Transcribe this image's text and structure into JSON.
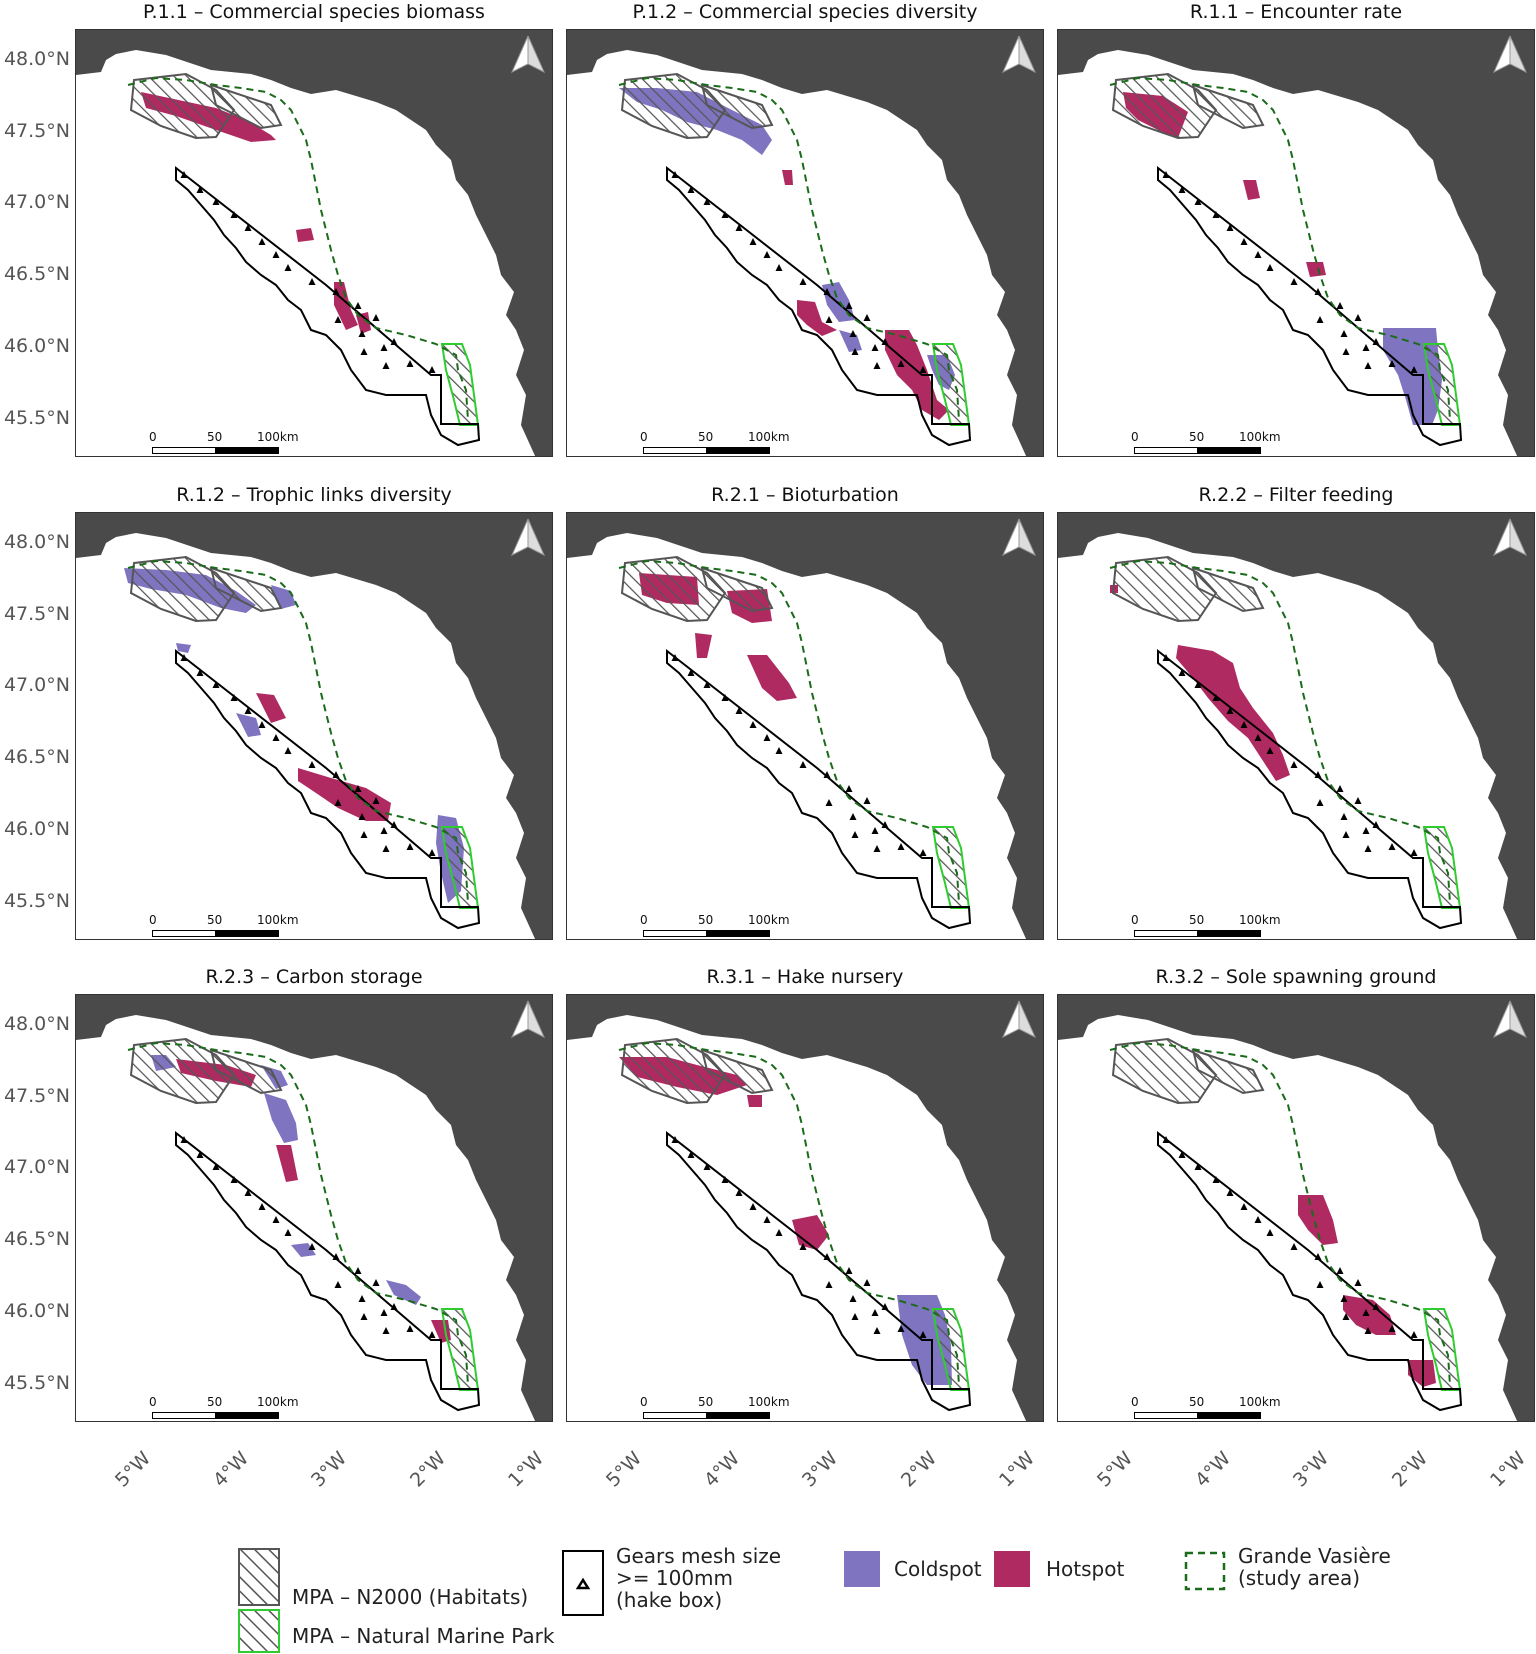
{
  "axes": {
    "lat_ticks": [
      "48.0°N",
      "47.5°N",
      "47.0°N",
      "46.5°N",
      "46.0°N",
      "45.5°N"
    ],
    "lon_ticks": [
      "5°W",
      "4°W",
      "3°W",
      "2°W",
      "1°W"
    ]
  },
  "scale": {
    "l0": "0",
    "l50": "50",
    "l100": "100km"
  },
  "colors": {
    "coldspot": "#7f74c0",
    "hotspot": "#b02a62",
    "land": "#4a4a4a",
    "n2000": "#555555",
    "park": "#2ecc2e",
    "grande_vasiere": "#1a6b1a"
  },
  "panels": [
    {
      "id": "P.1.1",
      "title": "P.1.1 – Commercial species biomass"
    },
    {
      "id": "P.1.2",
      "title": "P.1.2 – Commercial species diversity"
    },
    {
      "id": "R.1.1",
      "title": "R.1.1 – Encounter rate"
    },
    {
      "id": "R.1.2",
      "title": "R.1.2 – Trophic links diversity"
    },
    {
      "id": "R.2.1",
      "title": "R.2.1 – Bioturbation"
    },
    {
      "id": "R.2.2",
      "title": "R.2.2 – Filter feeding"
    },
    {
      "id": "R.2.3",
      "title": "R.2.3 – Carbon storage"
    },
    {
      "id": "R.3.1",
      "title": "R.3.1 – Hake nursery"
    },
    {
      "id": "R.3.2",
      "title": "R.3.2 – Sole spawning ground"
    }
  ],
  "legend": {
    "n2000": "MPA – N2000 (Habitats)",
    "park": "MPA – Natural Marine Park",
    "gears_line1": "Gears mesh size",
    "gears_line2": ">= 100mm",
    "gears_line3": "(hake box)",
    "coldspot": "Coldspot",
    "hotspot": "Hotspot",
    "gv_line1": "Grande Vasière",
    "gv_line2": "(study area)"
  }
}
